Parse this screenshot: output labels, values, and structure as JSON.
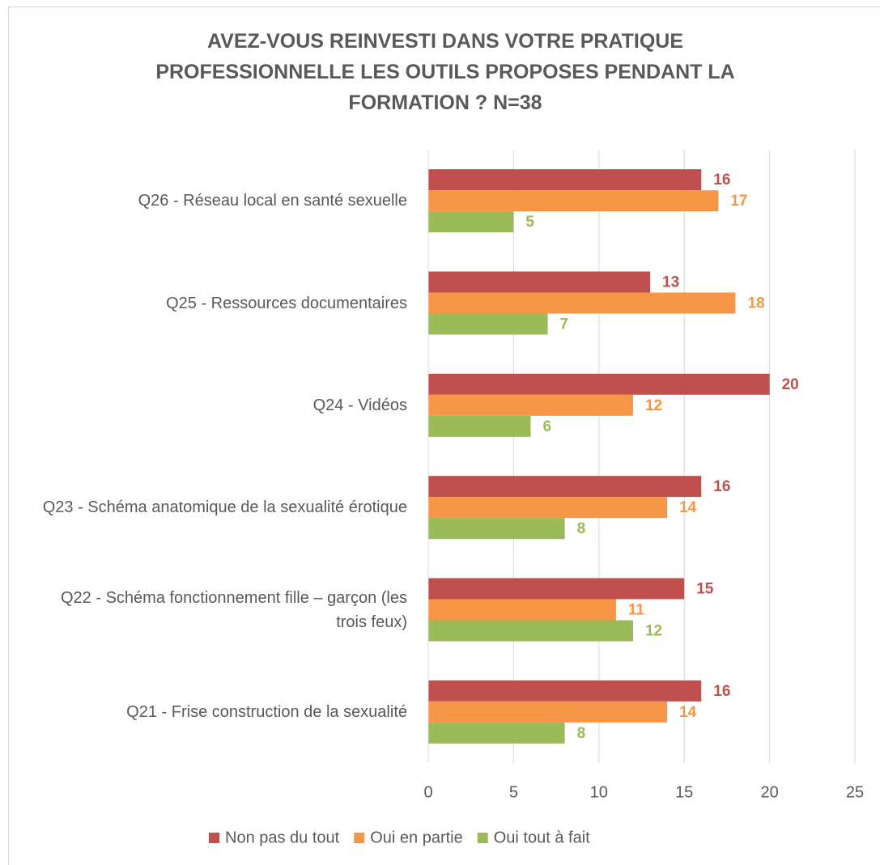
{
  "chart_data": {
    "type": "barh",
    "title": "AVEZ-VOUS REINVESTI DANS VOTRE PRATIQUE PROFESSIONNELLE LES OUTILS PROPOSES PENDANT LA FORMATION ? N=38",
    "categories": [
      "Q26 - Réseau local en santé sexuelle",
      "Q25 - Ressources documentaires",
      "Q24 - Vidéos",
      "Q23 - Schéma anatomique de la sexualité érotique",
      "Q22 - Schéma fonctionnement fille – garçon (les trois feux)",
      "Q21 - Frise construction de la sexualité"
    ],
    "series": [
      {
        "name": "Non pas du tout",
        "color": "#c0504d",
        "values": [
          16,
          13,
          20,
          16,
          15,
          16
        ]
      },
      {
        "name": "Oui en partie",
        "color": "#f79646",
        "values": [
          17,
          18,
          12,
          14,
          11,
          14
        ]
      },
      {
        "name": "Oui tout à fait",
        "color": "#9bbb59",
        "values": [
          5,
          7,
          6,
          8,
          12,
          8
        ]
      }
    ],
    "xlim": [
      0,
      25
    ],
    "xticks": [
      0,
      5,
      10,
      15,
      20,
      25
    ],
    "grid": true,
    "legend": "bottom"
  }
}
